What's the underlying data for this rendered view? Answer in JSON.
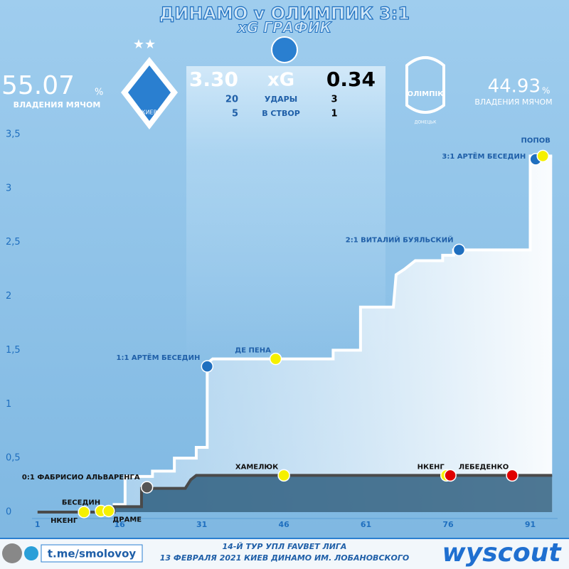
{
  "header": {
    "title": "ДИНАМО v ОЛИМПИК 3:1",
    "subtitle": "xG ГРАФИК",
    "home": {
      "possession": "55.07",
      "unit": "%",
      "possession_label": "ВЛАДЕНИЯ МЯЧОМ",
      "logo_text": "КИЕВ"
    },
    "away": {
      "possession": "44.93",
      "unit": "%",
      "possession_label": "ВЛАДЕНИЯ МЯЧОМ",
      "logo_text": "ОЛІМПІК",
      "logo_subtext": "ДОНЕЦЬК"
    },
    "stats": [
      [
        "3.30",
        "xG",
        "0.34"
      ],
      [
        "20",
        "УДАРЫ",
        "3"
      ],
      [
        "5",
        "В СТВОР",
        "1"
      ]
    ]
  },
  "footer": {
    "channel": "t.me/smolovoy",
    "round": "14-Й ТУР УПЛ FAVBET ЛИГА",
    "match_info": "13 ФЕВРАЛЯ 2021 КИЕВ ДИНАМО ИМ. ЛОБАНОВСКОГО",
    "brand": "wyscout"
  },
  "chart_data": {
    "type": "line",
    "xlim": [
      0,
      96
    ],
    "ylim": [
      0,
      3.5
    ],
    "xticks": [
      1,
      16,
      31,
      46,
      61,
      76,
      91
    ],
    "yticks": [
      0,
      {
        "value": 0.5,
        "label": "0,5"
      },
      1,
      {
        "value": 1.5,
        "label": "1,5"
      },
      2,
      {
        "value": 2.5,
        "label": "2,5"
      },
      3,
      {
        "value": 3.5,
        "label": "3,5"
      }
    ],
    "series": [
      {
        "name": "ДИНАМО",
        "color": "#ffffff",
        "x": [
          1,
          15,
          15,
          17,
          17,
          22,
          22,
          26,
          26,
          30,
          30,
          32,
          32,
          33,
          55,
          55,
          60,
          60,
          66,
          66.5,
          68,
          70,
          75,
          75,
          77,
          77,
          91,
          91,
          95
        ],
        "values": [
          0,
          0,
          0.07,
          0.07,
          0.33,
          0.33,
          0.38,
          0.38,
          0.5,
          0.5,
          0.6,
          0.6,
          1.38,
          1.42,
          1.42,
          1.5,
          1.5,
          1.9,
          1.9,
          2.2,
          2.25,
          2.33,
          2.33,
          2.38,
          2.38,
          2.43,
          2.43,
          3.3,
          3.3
        ]
      },
      {
        "name": "ОЛИМПИК",
        "color": "#4a4a4a",
        "x": [
          1,
          15,
          15,
          20,
          20,
          28,
          29,
          30,
          95
        ],
        "values": [
          0,
          0,
          0.05,
          0.05,
          0.22,
          0.22,
          0.3,
          0.34,
          0.34
        ]
      }
    ],
    "events": [
      {
        "x": 32,
        "y": 1.35,
        "color": "#1f6fbf",
        "label": "1:1 АРТЁМ БЕСЕДИН"
      },
      {
        "x": 78,
        "y": 2.43,
        "color": "#1f6fbf",
        "label": "2:1 ВИТАЛИЙ БУЯЛЬСКИЙ"
      },
      {
        "x": 92,
        "y": 3.27,
        "color": "#1f6fbf",
        "label": "3:1 АРТЁМ БЕСЕДИН"
      },
      {
        "x": 93.3,
        "y": 3.3,
        "color": "#f5f000",
        "label": "ПОПОВ"
      },
      {
        "x": 44.5,
        "y": 1.42,
        "color": "#f5f000",
        "label": "ДЕ ПЕНА"
      },
      {
        "x": 9.5,
        "y": 0,
        "color": "#f5f000",
        "label": "НКЕНГ"
      },
      {
        "x": 12.6,
        "y": 0.01,
        "color": "#f5f000",
        "label": "БЕСЕДИН"
      },
      {
        "x": 14,
        "y": 0.01,
        "color": "#f5f000",
        "label": "ДРАМЕ"
      },
      {
        "x": 21,
        "y": 0.23,
        "color": "#555555",
        "label": "0:1 ФАБРИСИО АЛЬВАРЕНГА"
      },
      {
        "x": 46,
        "y": 0.34,
        "color": "#f5f000",
        "label": "ХАМЕЛЮК"
      },
      {
        "x": 75.7,
        "y": 0.34,
        "color": "#f5f000",
        "label": "НКЕНГ"
      },
      {
        "x": 76.4,
        "y": 0.34,
        "color": "#e00000"
      },
      {
        "x": 87.7,
        "y": 0.34,
        "color": "#e00000",
        "label": "ЛЕБЕДЕНКО"
      }
    ]
  }
}
